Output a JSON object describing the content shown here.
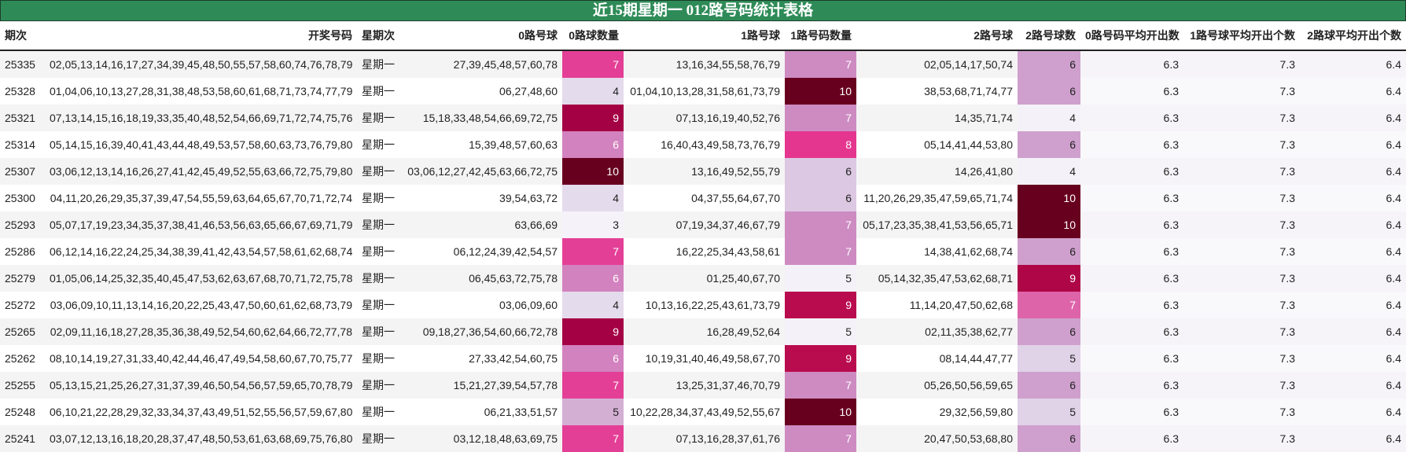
{
  "title": "近15期星期一 012路号码统计表格",
  "headers": [
    "期次",
    "开奖号码",
    "星期次",
    "0路号球",
    "0路球数量",
    "1路号球",
    "1路号码数量",
    "2路号球",
    "2路号球数",
    "0路号码平均开出数",
    "1路号球平均开出个数",
    "2路球平均开出个数"
  ],
  "rows": [
    [
      "25335",
      "02,05,13,14,16,17,27,34,39,45,48,50,55,57,58,60,74,76,78,79",
      "星期一",
      "27,39,45,48,57,60,78",
      "7",
      "13,16,34,55,58,76,79",
      "7",
      "02,05,14,17,50,74",
      "6",
      "6.3",
      "7.3",
      "6.4"
    ],
    [
      "25328",
      "01,04,06,10,13,27,28,31,38,48,53,58,60,61,68,71,73,74,77,79",
      "星期一",
      "06,27,48,60",
      "4",
      "01,04,10,13,28,31,58,61,73,79",
      "10",
      "38,53,68,71,74,77",
      "6",
      "6.3",
      "7.3",
      "6.4"
    ],
    [
      "25321",
      "07,13,14,15,16,18,19,33,35,40,48,52,54,66,69,71,72,74,75,76",
      "星期一",
      "15,18,33,48,54,66,69,72,75",
      "9",
      "07,13,16,19,40,52,76",
      "7",
      "14,35,71,74",
      "4",
      "6.3",
      "7.3",
      "6.4"
    ],
    [
      "25314",
      "05,14,15,16,39,40,41,43,44,48,49,53,57,58,60,63,73,76,79,80",
      "星期一",
      "15,39,48,57,60,63",
      "6",
      "16,40,43,49,58,73,76,79",
      "8",
      "05,14,41,44,53,80",
      "6",
      "6.3",
      "7.3",
      "6.4"
    ],
    [
      "25307",
      "03,06,12,13,14,16,26,27,41,42,45,49,52,55,63,66,72,75,79,80",
      "星期一",
      "03,06,12,27,42,45,63,66,72,75",
      "10",
      "13,16,49,52,55,79",
      "6",
      "14,26,41,80",
      "4",
      "6.3",
      "7.3",
      "6.4"
    ],
    [
      "25300",
      "04,11,20,26,29,35,37,39,47,54,55,59,63,64,65,67,70,71,72,74",
      "星期一",
      "39,54,63,72",
      "4",
      "04,37,55,64,67,70",
      "6",
      "11,20,26,29,35,47,59,65,71,74",
      "10",
      "6.3",
      "7.3",
      "6.4"
    ],
    [
      "25293",
      "05,07,17,19,23,34,35,37,38,41,46,53,56,63,65,66,67,69,71,79",
      "星期一",
      "63,66,69",
      "3",
      "07,19,34,37,46,67,79",
      "7",
      "05,17,23,35,38,41,53,56,65,71",
      "10",
      "6.3",
      "7.3",
      "6.4"
    ],
    [
      "25286",
      "06,12,14,16,22,24,25,34,38,39,41,42,43,54,57,58,61,62,68,74",
      "星期一",
      "06,12,24,39,42,54,57",
      "7",
      "16,22,25,34,43,58,61",
      "7",
      "14,38,41,62,68,74",
      "6",
      "6.3",
      "7.3",
      "6.4"
    ],
    [
      "25279",
      "01,05,06,14,25,32,35,40,45,47,53,62,63,67,68,70,71,72,75,78",
      "星期一",
      "06,45,63,72,75,78",
      "6",
      "01,25,40,67,70",
      "5",
      "05,14,32,35,47,53,62,68,71",
      "9",
      "6.3",
      "7.3",
      "6.4"
    ],
    [
      "25272",
      "03,06,09,10,11,13,14,16,20,22,25,43,47,50,60,61,62,68,73,79",
      "星期一",
      "03,06,09,60",
      "4",
      "10,13,16,22,25,43,61,73,79",
      "9",
      "11,14,20,47,50,62,68",
      "7",
      "6.3",
      "7.3",
      "6.4"
    ],
    [
      "25265",
      "02,09,11,16,18,27,28,35,36,38,49,52,54,60,62,64,66,72,77,78",
      "星期一",
      "09,18,27,36,54,60,66,72,78",
      "9",
      "16,28,49,52,64",
      "5",
      "02,11,35,38,62,77",
      "6",
      "6.3",
      "7.3",
      "6.4"
    ],
    [
      "25262",
      "08,10,14,19,27,31,33,40,42,44,46,47,49,54,58,60,67,70,75,77",
      "星期一",
      "27,33,42,54,60,75",
      "6",
      "10,19,31,40,46,49,58,67,70",
      "9",
      "08,14,44,47,77",
      "5",
      "6.3",
      "7.3",
      "6.4"
    ],
    [
      "25255",
      "05,13,15,21,25,26,27,31,37,39,46,50,54,56,57,59,65,70,78,79",
      "星期一",
      "15,21,27,39,54,57,78",
      "7",
      "13,25,31,37,46,70,79",
      "7",
      "05,26,50,56,59,65",
      "6",
      "6.3",
      "7.3",
      "6.4"
    ],
    [
      "25248",
      "06,10,21,22,28,29,32,33,34,37,43,49,51,52,55,56,57,59,67,80",
      "星期一",
      "06,21,33,51,57",
      "5",
      "10,22,28,34,37,43,49,52,55,67",
      "10",
      "29,32,56,59,80",
      "5",
      "6.3",
      "7.3",
      "6.4"
    ],
    [
      "25241",
      "03,07,12,13,16,18,20,28,37,47,48,50,53,61,63,68,69,75,76,80",
      "星期一",
      "03,12,18,48,63,69,75",
      "7",
      "07,13,16,28,37,61,76",
      "7",
      "20,47,50,53,68,80",
      "6",
      "6.3",
      "7.3",
      "6.4"
    ]
  ],
  "colors": {
    "title_bg": "#2e8b57",
    "count_scales": {
      "4": {
        "3": [
          "#f5f3f9",
          "#222"
        ],
        "4": [
          "#e4dbec",
          "#222"
        ],
        "5": [
          "#d4afd4",
          "#222"
        ],
        "6": [
          "#d282be",
          "#fff"
        ],
        "7": [
          "#e43f96",
          "#fff"
        ],
        "9": [
          "#a40044",
          "#fff"
        ],
        "10": [
          "#67001f",
          "#fff"
        ]
      },
      "6": {
        "5": [
          "#f4f2f8",
          "#222"
        ],
        "6": [
          "#dcc8e2",
          "#222"
        ],
        "7": [
          "#cd8bc2",
          "#fff"
        ],
        "8": [
          "#e4368f",
          "#fff"
        ],
        "9": [
          "#b90c4e",
          "#fff"
        ],
        "10": [
          "#67001f",
          "#fff"
        ]
      },
      "8": {
        "4": [
          "#f4f2f8",
          "#222"
        ],
        "5": [
          "#e0d2e7",
          "#222"
        ],
        "6": [
          "#cfa0cd",
          "#222"
        ],
        "7": [
          "#de64aa",
          "#fff"
        ],
        "9": [
          "#ae0646",
          "#fff"
        ],
        "10": [
          "#67001f",
          "#fff"
        ]
      }
    }
  }
}
